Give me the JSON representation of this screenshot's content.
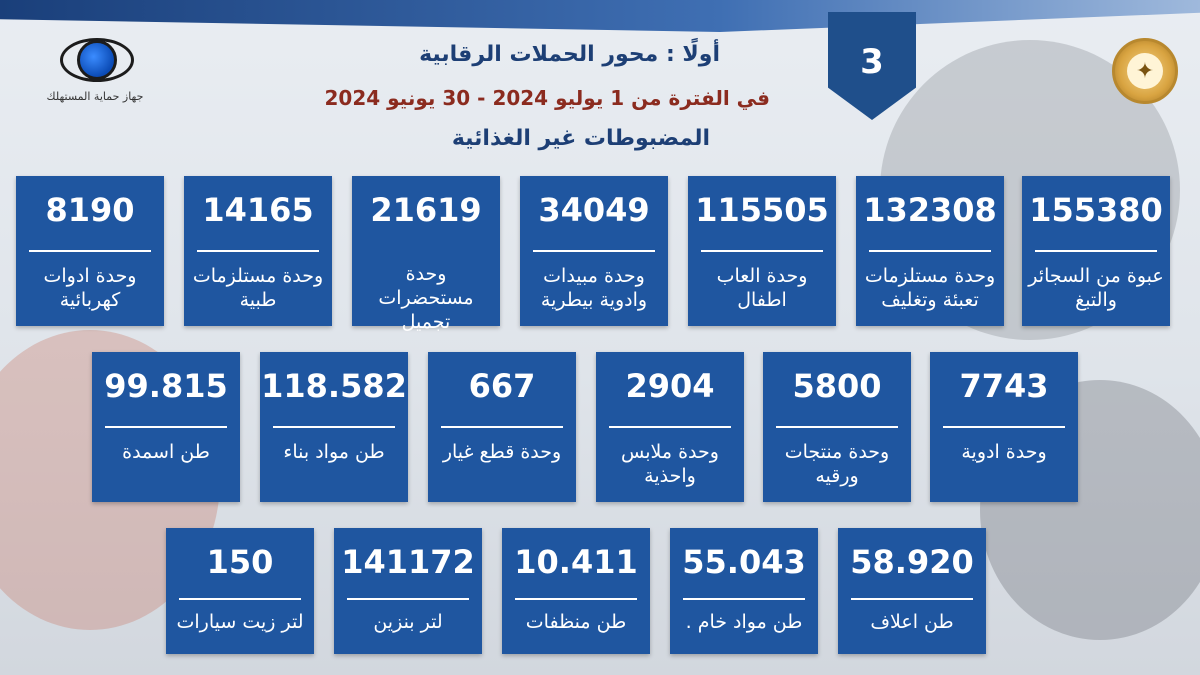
{
  "header": {
    "slide_number": "3",
    "title": "أولًا : محور الحملات الرقابية",
    "period": "في الفترة من 1 يوليو 2024 - 30 يونيو 2024",
    "section": "المضبوطات غير الغذائية"
  },
  "logo": {
    "agency_name": "جهاز حماية المستهلك"
  },
  "emblem": {
    "symbol": "✦"
  },
  "colors": {
    "card": "#1f56a0",
    "title": "#1d3f75",
    "period": "#8b2b1f",
    "tag": "#1f4f8b"
  },
  "rows": [
    [
      {
        "value": "155380",
        "label": "عبوة من السجائر والتبغ"
      },
      {
        "value": "132308",
        "label": "وحدة مستلزمات تعبئة وتغليف"
      },
      {
        "value": "115505",
        "label": "وحدة العاب اطفال"
      },
      {
        "value": "34049",
        "label": "وحدة مبيدات وادوية بيطرية"
      },
      {
        "value": "21619",
        "label": "وحدة مستحضرات تجميل"
      },
      {
        "value": "14165",
        "label": "وحدة مستلزمات طبية"
      },
      {
        "value": "8190",
        "label": "وحدة ادوات كهربائية"
      }
    ],
    [
      {
        "value": "7743",
        "label": "وحدة ادوية"
      },
      {
        "value": "5800",
        "label": "وحدة منتجات ورقيه"
      },
      {
        "value": "2904",
        "label": "وحدة ملابس واحذية"
      },
      {
        "value": "667",
        "label": "وحدة قطع غيار"
      },
      {
        "value": "118.582",
        "label": "طن مواد بناء"
      },
      {
        "value": "99.815",
        "label": "طن اسمدة"
      }
    ],
    [
      {
        "value": "58.920",
        "label": "طن اعلاف"
      },
      {
        "value": "55.043",
        "label": "طن مواد خام ."
      },
      {
        "value": "10.411",
        "label": "طن منظفات"
      },
      {
        "value": "141172",
        "label": "لتر بنزين"
      },
      {
        "value": "150",
        "label": "لتر زيت سيارات"
      }
    ]
  ]
}
